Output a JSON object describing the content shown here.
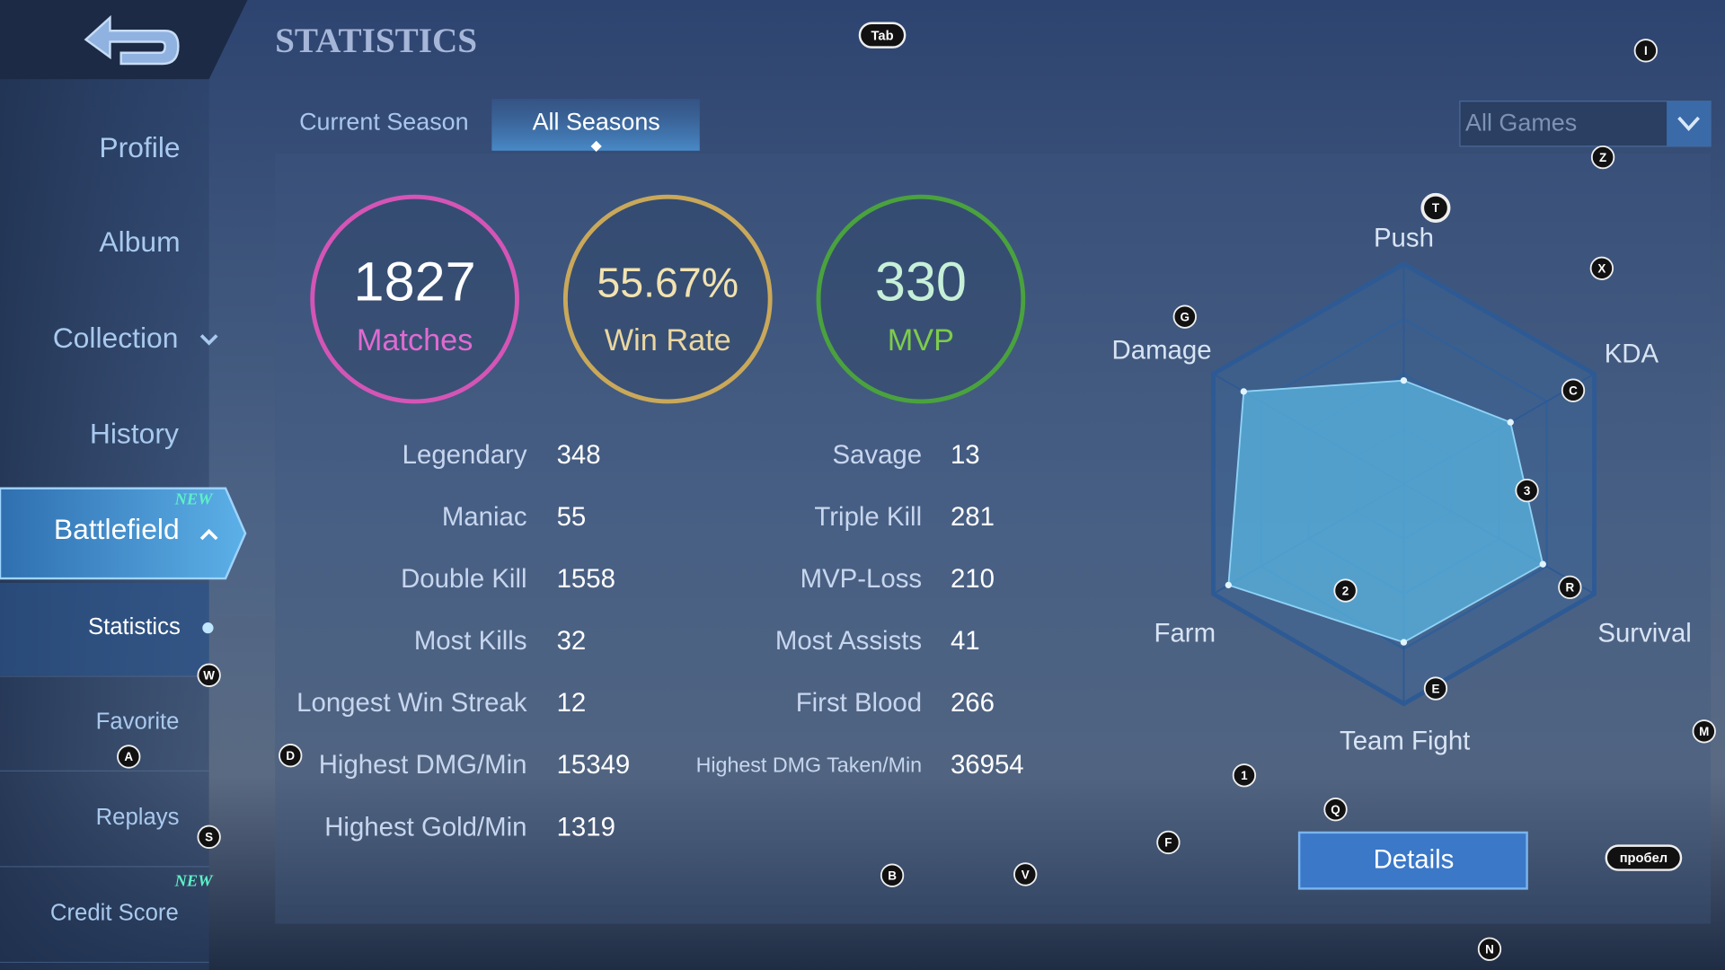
{
  "header": {
    "title": "STATISTICS"
  },
  "tabs": [
    "Current Season",
    "All Seasons"
  ],
  "filter": "All Games",
  "sidebar": {
    "items": [
      {
        "label": "Profile"
      },
      {
        "label": "Album"
      },
      {
        "label": "Collection"
      },
      {
        "label": "History"
      },
      {
        "label": "Battlefield",
        "badge": "NEW"
      }
    ],
    "subitems": [
      {
        "label": "Statistics"
      },
      {
        "label": "Favorite"
      },
      {
        "label": "Replays"
      },
      {
        "label": "Credit Score",
        "badge": "NEW"
      }
    ]
  },
  "summary": [
    {
      "value": 1827,
      "label": "Matches"
    },
    {
      "value": "55.67%",
      "label": "Win Rate"
    },
    {
      "value": 330,
      "label": "MVP"
    }
  ],
  "stats": {
    "left": [
      {
        "label": "Legendary",
        "value": 348
      },
      {
        "label": "Maniac",
        "value": 55
      },
      {
        "label": "Double Kill",
        "value": 1558
      },
      {
        "label": "Most Kills",
        "value": 32
      },
      {
        "label": "Longest Win Streak",
        "value": 12
      },
      {
        "label": "Highest DMG/Min",
        "value": 15349
      },
      {
        "label": "Highest Gold/Min",
        "value": 1319
      }
    ],
    "right": [
      {
        "label": "Savage",
        "value": 13
      },
      {
        "label": "Triple Kill",
        "value": 281
      },
      {
        "label": "MVP-Loss",
        "value": 210
      },
      {
        "label": "Most Assists",
        "value": 41
      },
      {
        "label": "First Blood",
        "value": 266
      },
      {
        "label": "Highest DMG Taken/Min",
        "value": 36954
      }
    ]
  },
  "radar": {
    "axes": [
      "Push",
      "KDA",
      "Survival",
      "Team Fight",
      "Farm",
      "Damage"
    ],
    "values": [
      47,
      56,
      73,
      72,
      92,
      84
    ],
    "max": 100,
    "rings": [
      25,
      50,
      75,
      100
    ]
  },
  "button": "Details",
  "hotkeys": [
    "Tab",
    "I",
    "Z",
    "T",
    "X",
    "G",
    "C",
    "3",
    "R",
    "2",
    "E",
    "M",
    "1",
    "Q",
    "F",
    "пробел",
    "B",
    "V",
    "D",
    "W",
    "A",
    "S",
    "N"
  ]
}
